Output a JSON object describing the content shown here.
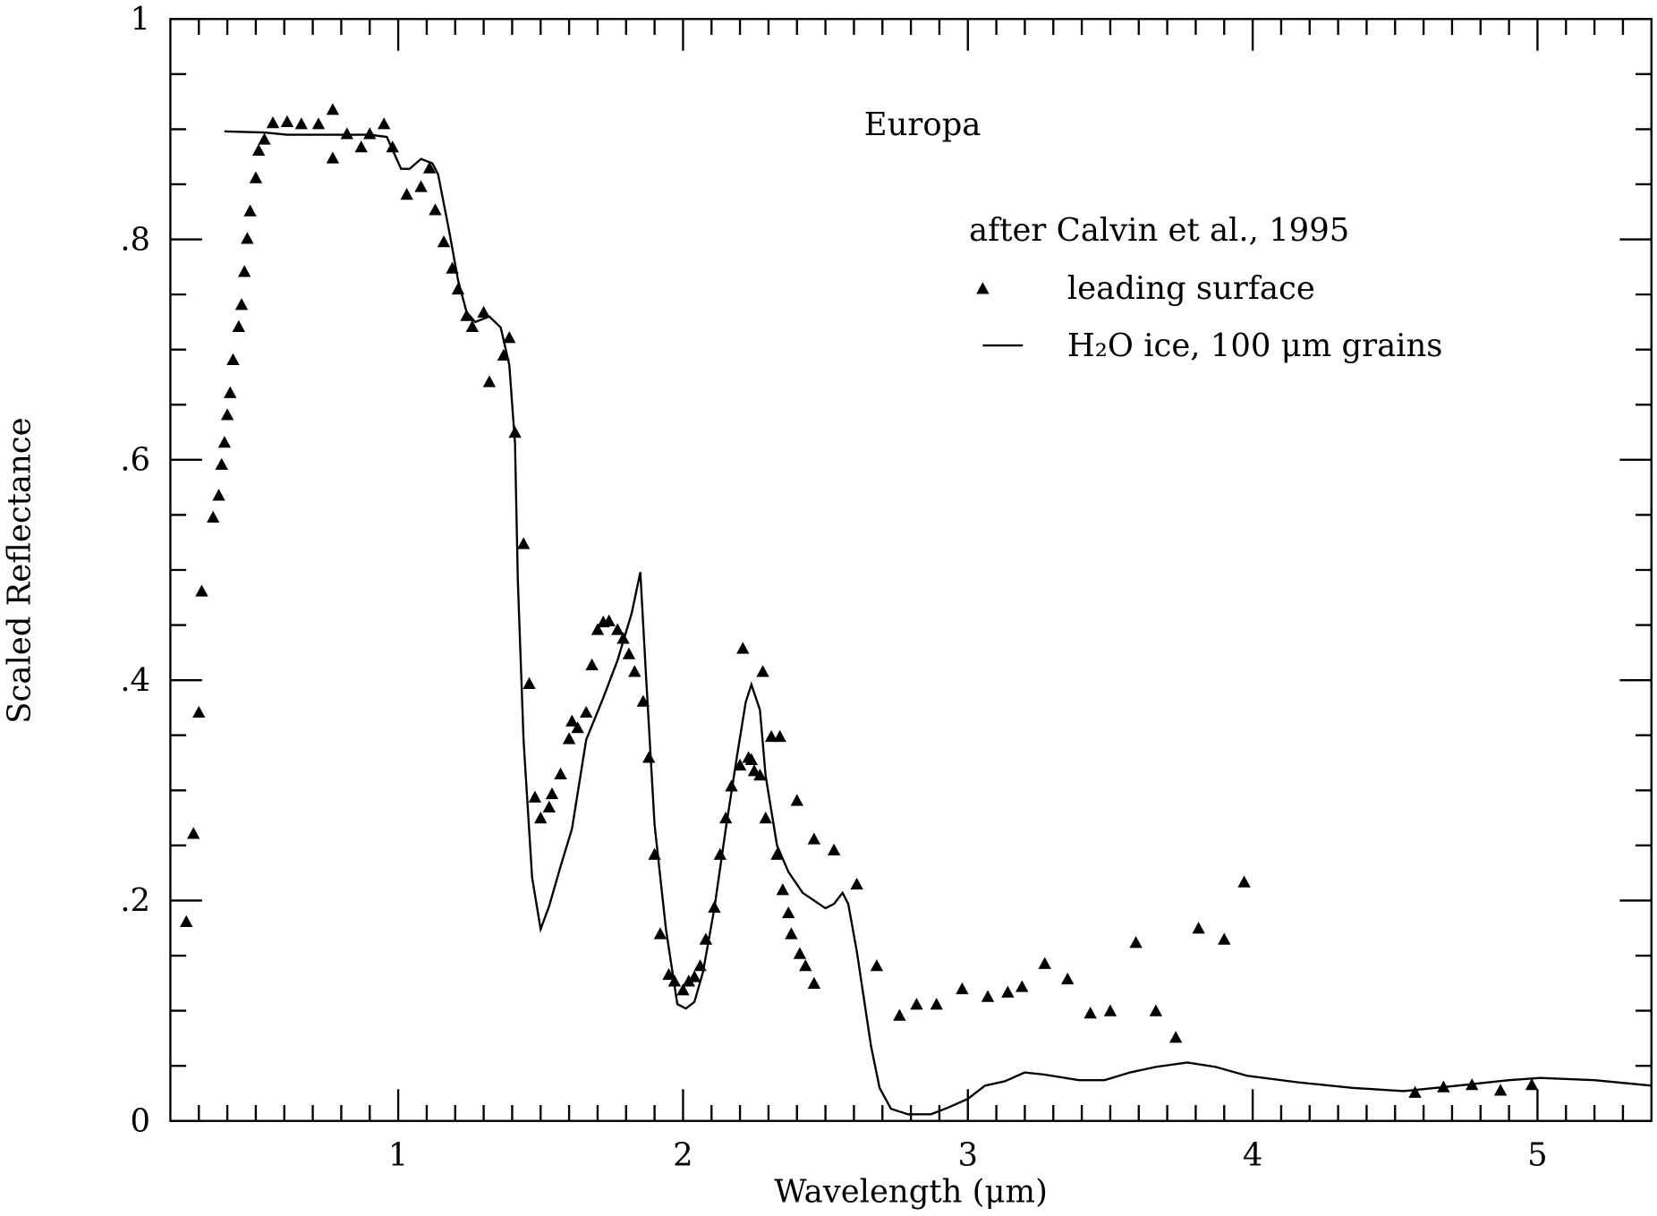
{
  "chart_data": {
    "type": "scatter",
    "xlabel": "Wavelength (μm)",
    "ylabel": "Scaled Reflectance",
    "annotations": [
      "Europa"
    ],
    "legend_title": "after Calvin et al., 1995",
    "xlim": [
      0.2,
      5.4
    ],
    "ylim": [
      0,
      1
    ],
    "xticks": [
      1,
      2,
      3,
      4,
      5
    ],
    "yticks": [
      0,
      {
        "value": 0.2,
        "label": ".2"
      },
      {
        "value": 0.4,
        "label": ".4"
      },
      {
        "value": 0.6,
        "label": ".6"
      },
      {
        "value": 0.8,
        "label": ".8"
      },
      1
    ],
    "xminorticks": [
      0.3,
      0.4,
      0.5,
      0.6,
      0.7,
      0.8,
      0.9,
      1.1,
      1.2,
      1.3,
      1.4,
      1.5,
      1.6,
      1.7,
      1.8,
      1.9,
      2.1,
      2.2,
      2.3,
      2.4,
      2.5,
      2.6,
      2.7,
      2.8,
      2.9,
      3.1,
      3.2,
      3.3,
      3.4,
      3.5,
      3.6,
      3.7,
      3.8,
      3.9,
      4.1,
      4.2,
      4.3,
      4.4,
      4.5,
      4.6,
      4.7,
      4.8,
      4.9,
      5.1,
      5.2,
      5.3
    ],
    "yminorticks": [
      0.05,
      0.1,
      0.15,
      0.25,
      0.3,
      0.35,
      0.45,
      0.5,
      0.55,
      0.65,
      0.7,
      0.75,
      0.85,
      0.9,
      0.95
    ],
    "series": [
      {
        "name": "leading surface",
        "type": "scatter",
        "color": "#000000",
        "x": [
          0.256,
          0.281,
          0.3,
          0.31,
          0.35,
          0.37,
          0.38,
          0.39,
          0.4,
          0.41,
          0.42,
          0.44,
          0.45,
          0.46,
          0.47,
          0.48,
          0.5,
          0.51,
          0.53,
          0.56,
          0.61,
          0.66,
          0.72,
          0.77,
          0.77,
          0.82,
          0.87,
          0.9,
          0.95,
          0.98,
          1.03,
          1.08,
          1.11,
          1.13,
          1.16,
          1.19,
          1.21,
          1.24,
          1.26,
          1.3,
          1.32,
          1.37,
          1.39,
          1.41,
          1.44,
          1.46,
          1.48,
          1.5,
          1.53,
          1.54,
          1.57,
          1.6,
          1.61,
          1.63,
          1.66,
          1.68,
          1.7,
          1.72,
          1.74,
          1.77,
          1.79,
          1.81,
          1.83,
          1.86,
          1.88,
          1.9,
          1.92,
          1.95,
          1.97,
          2.0,
          2.02,
          2.04,
          2.06,
          2.08,
          2.11,
          2.13,
          2.15,
          2.17,
          2.2,
          2.21,
          2.23,
          2.24,
          2.25,
          2.27,
          2.28,
          2.29,
          2.31,
          2.33,
          2.34,
          2.35,
          2.37,
          2.38,
          2.4,
          2.41,
          2.43,
          2.46,
          2.46,
          2.53,
          2.61,
          2.68,
          2.76,
          2.82,
          2.89,
          2.98,
          3.07,
          3.14,
          3.19,
          3.27,
          3.35,
          3.43,
          3.5,
          3.59,
          3.66,
          3.73,
          3.81,
          3.9,
          3.97,
          4.57,
          4.67,
          4.77,
          4.87,
          4.98
        ],
        "y": [
          0.18,
          0.26,
          0.37,
          0.48,
          0.547,
          0.567,
          0.595,
          0.615,
          0.64,
          0.66,
          0.69,
          0.72,
          0.74,
          0.77,
          0.8,
          0.825,
          0.855,
          0.88,
          0.89,
          0.905,
          0.906,
          0.904,
          0.904,
          0.917,
          0.873,
          0.895,
          0.883,
          0.895,
          0.904,
          0.883,
          0.84,
          0.847,
          0.864,
          0.826,
          0.797,
          0.773,
          0.754,
          0.73,
          0.72,
          0.733,
          0.67,
          0.694,
          0.71,
          0.624,
          0.523,
          0.396,
          0.293,
          0.274,
          0.284,
          0.296,
          0.314,
          0.346,
          0.362,
          0.356,
          0.37,
          0.413,
          0.445,
          0.452,
          0.453,
          0.445,
          0.437,
          0.423,
          0.407,
          0.38,
          0.329,
          0.241,
          0.169,
          0.132,
          0.126,
          0.118,
          0.126,
          0.13,
          0.14,
          0.164,
          0.193,
          0.241,
          0.274,
          0.303,
          0.322,
          0.428,
          0.329,
          0.327,
          0.317,
          0.313,
          0.407,
          0.274,
          0.348,
          0.241,
          0.348,
          0.209,
          0.188,
          0.169,
          0.29,
          0.151,
          0.14,
          0.124,
          0.255,
          0.245,
          0.214,
          0.14,
          0.095,
          0.105,
          0.105,
          0.119,
          0.112,
          0.116,
          0.121,
          0.142,
          0.128,
          0.097,
          0.099,
          0.161,
          0.099,
          0.075,
          0.174,
          0.164,
          0.216,
          0.025,
          0.03,
          0.032,
          0.027,
          0.032
        ]
      },
      {
        "name": "H₂O ice, 100 μm grains",
        "type": "line",
        "color": "#000000",
        "x": [
          0.39,
          0.53,
          0.61,
          0.9,
          0.96,
          1.01,
          1.04,
          1.08,
          1.12,
          1.14,
          1.18,
          1.21,
          1.24,
          1.27,
          1.32,
          1.36,
          1.39,
          1.41,
          1.42,
          1.44,
          1.47,
          1.5,
          1.53,
          1.57,
          1.61,
          1.66,
          1.72,
          1.77,
          1.82,
          1.85,
          1.87,
          1.9,
          1.94,
          1.98,
          2.01,
          2.04,
          2.07,
          2.11,
          2.15,
          2.19,
          2.22,
          2.24,
          2.27,
          2.29,
          2.33,
          2.37,
          2.42,
          2.5,
          2.53,
          2.56,
          2.58,
          2.61,
          2.66,
          2.69,
          2.73,
          2.79,
          2.87,
          2.93,
          3.0,
          3.06,
          3.13,
          3.2,
          3.27,
          3.39,
          3.48,
          3.57,
          3.66,
          3.77,
          3.87,
          3.98,
          4.16,
          4.35,
          4.53,
          4.72,
          4.9,
          5.01,
          5.2,
          5.4
        ],
        "y": [
          0.898,
          0.897,
          0.895,
          0.895,
          0.893,
          0.864,
          0.864,
          0.873,
          0.869,
          0.859,
          0.806,
          0.763,
          0.734,
          0.725,
          0.73,
          0.72,
          0.686,
          0.615,
          0.49,
          0.346,
          0.221,
          0.174,
          0.195,
          0.231,
          0.265,
          0.346,
          0.384,
          0.418,
          0.461,
          0.498,
          0.404,
          0.269,
          0.174,
          0.106,
          0.102,
          0.108,
          0.135,
          0.193,
          0.265,
          0.332,
          0.38,
          0.396,
          0.373,
          0.313,
          0.25,
          0.226,
          0.207,
          0.193,
          0.197,
          0.207,
          0.197,
          0.154,
          0.068,
          0.03,
          0.011,
          0.006,
          0.006,
          0.012,
          0.02,
          0.032,
          0.036,
          0.044,
          0.042,
          0.037,
          0.037,
          0.044,
          0.049,
          0.053,
          0.049,
          0.041,
          0.035,
          0.03,
          0.027,
          0.032,
          0.037,
          0.039,
          0.037,
          0.032
        ]
      }
    ]
  }
}
